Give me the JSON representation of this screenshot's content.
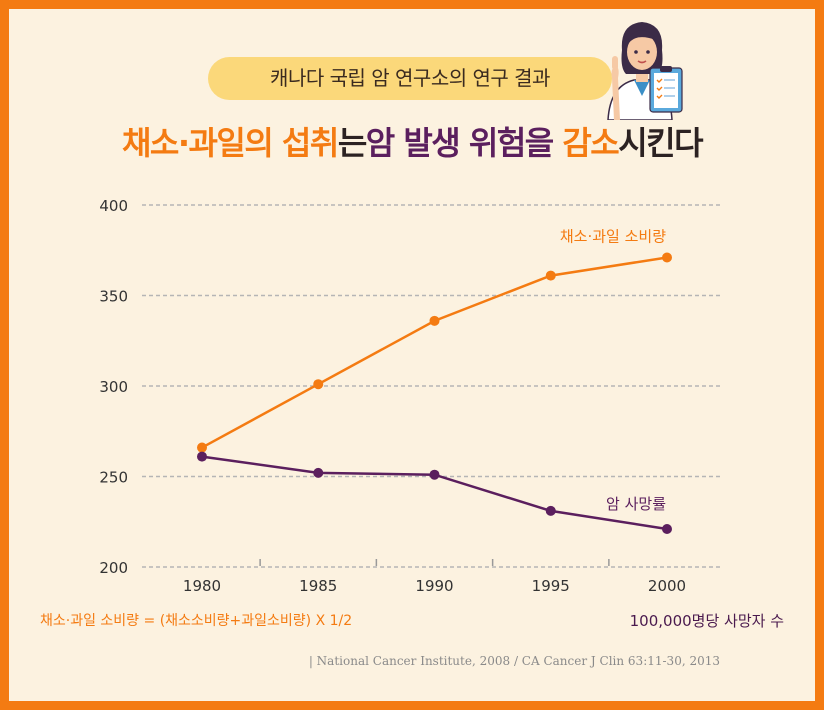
{
  "header": {
    "subtitle": "캐나다 국립 암 연구소의 연구 결과",
    "title_parts": [
      "채소·과일의 섭취",
      "는",
      "암 발생 위험을",
      " 감소",
      "시킨다"
    ]
  },
  "colors": {
    "frame": "#f47b12",
    "background": "#fcf2e0",
    "pill": "#fbd87a",
    "consumption_line": "#f47b12",
    "mortality_line": "#5b1f5e"
  },
  "chart_data": {
    "type": "line",
    "x": [
      1980,
      1985,
      1990,
      1995,
      2000
    ],
    "ylim": [
      200,
      400
    ],
    "yticks": [
      200,
      250,
      300,
      350,
      400
    ],
    "grid": true,
    "series": [
      {
        "name": "채소·과일 소비량",
        "values": [
          266,
          301,
          336,
          361,
          371
        ]
      },
      {
        "name": "암 사망률",
        "values": [
          261,
          252,
          251,
          231,
          221
        ]
      }
    ]
  },
  "notes": {
    "consumption_formula": "채소·과일 소비량 = (채소소비량+과일소비량) X 1/2",
    "mortality_unit": "100,000명당 사망자 수",
    "source": "| National Cancer Institute, 2008 / CA Cancer J Clin 63:11-30, 2013"
  },
  "icons": {
    "illustration": "doctor-with-clipboard-icon"
  }
}
